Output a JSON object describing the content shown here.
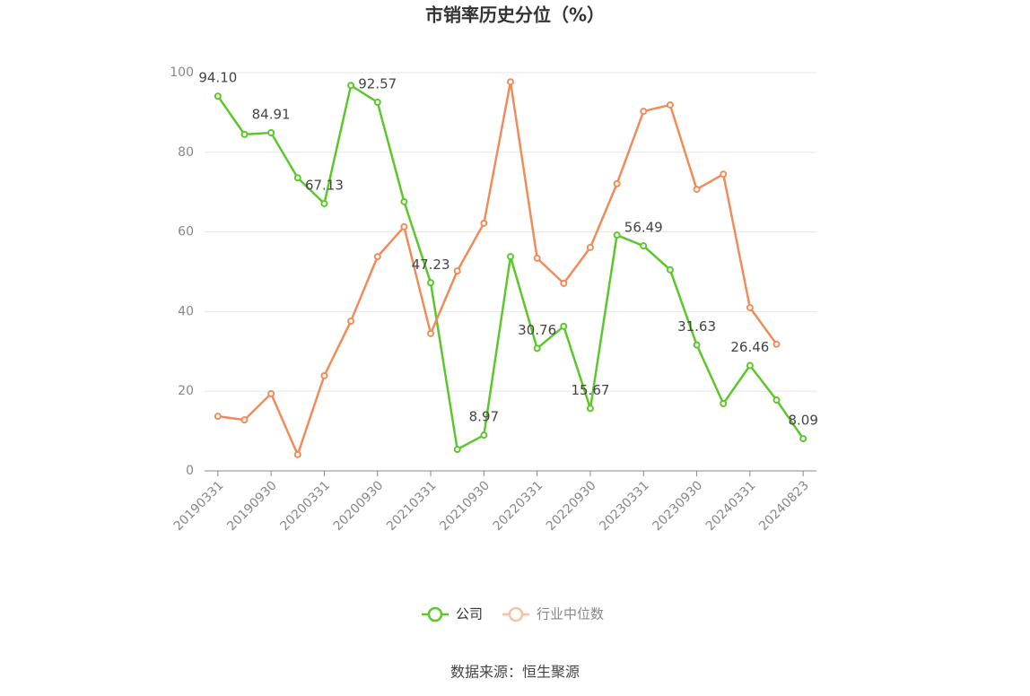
{
  "chart_data": {
    "type": "line",
    "title": "市销率历史分位（%）",
    "categories": [
      "20190331",
      null,
      "20190930",
      null,
      "20200331",
      null,
      "20200930",
      null,
      "20210331",
      null,
      "20210930",
      null,
      "20220331",
      null,
      "20220930",
      null,
      "20230331",
      null,
      "20230930",
      null,
      "20240331",
      null,
      "20240823"
    ],
    "series": [
      {
        "name": "公司",
        "color": "#5cc72a",
        "values": [
          94.1,
          84.5,
          84.91,
          73.6,
          67.13,
          96.8,
          92.57,
          67.6,
          47.23,
          5.4,
          8.97,
          53.8,
          30.76,
          36.3,
          15.67,
          59.2,
          56.49,
          50.5,
          31.63,
          16.9,
          26.46,
          17.8,
          8.09
        ],
        "value_labels": [
          "94.10",
          null,
          "84.91",
          null,
          "67.13",
          null,
          "92.57",
          null,
          "47.23",
          null,
          "8.97",
          null,
          "30.76",
          null,
          "15.67",
          null,
          "56.49",
          null,
          "31.63",
          null,
          "26.46",
          null,
          "8.09"
        ]
      },
      {
        "name": "行业中位数",
        "color": "#f08c5a",
        "values": [
          13.7,
          12.8,
          19.4,
          4.1,
          23.9,
          37.6,
          53.8,
          61.3,
          34.5,
          50.2,
          62.2,
          97.7,
          53.4,
          47.1,
          56.1,
          72.1,
          90.3,
          91.9,
          70.7,
          74.5,
          41.0,
          31.8,
          null
        ]
      }
    ],
    "ylim": [
      0,
      100
    ],
    "yticks": [
      0,
      20,
      40,
      60,
      80,
      100
    ],
    "grid": true,
    "source": "数据来源：恒生聚源"
  }
}
